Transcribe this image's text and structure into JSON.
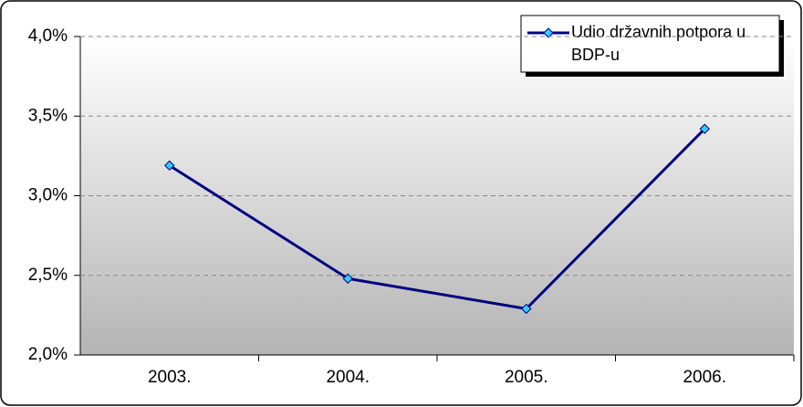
{
  "chart_data": {
    "type": "line",
    "categories": [
      "2003.",
      "2004.",
      "2005.",
      "2006."
    ],
    "series": [
      {
        "name": "Udio državnih potpora u BDP-u",
        "color": "#000080",
        "marker_color": "#33ccff",
        "values": [
          3.19,
          2.48,
          2.29,
          3.42
        ]
      }
    ],
    "ylim": [
      2,
      4
    ],
    "yticks": [
      {
        "value": 2,
        "label": "2,0%"
      },
      {
        "value": 2.5,
        "label": "2,5%"
      },
      {
        "value": 3,
        "label": "3,0%"
      },
      {
        "value": 3.5,
        "label": "3,5%"
      },
      {
        "value": 4,
        "label": "4,0%"
      }
    ],
    "grid": true,
    "legend": "top-right"
  }
}
